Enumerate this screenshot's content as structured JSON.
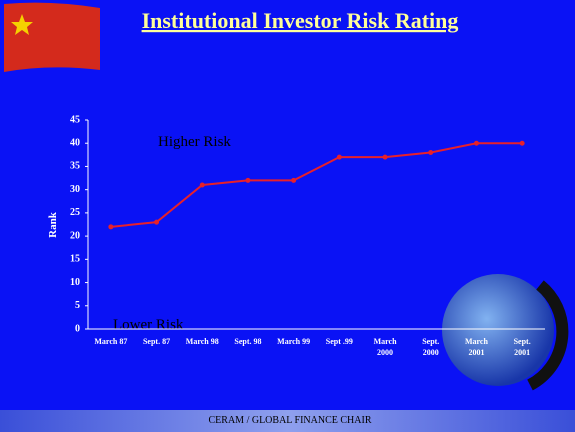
{
  "chart_data": {
    "type": "line",
    "title": "Institutional Investor Risk Rating",
    "ylabel": "Rank",
    "annotations": [
      "Higher Risk",
      "Lower Risk"
    ],
    "footer": "CERAM / GLOBAL FINANCE CHAIR",
    "categories": [
      "March 87",
      "Sept. 87",
      "March 98",
      "Sept. 98",
      "March 99",
      "Sept .99",
      "March\n2000",
      "Sept.\n2000",
      "March\n2001",
      "Sept.\n2001"
    ],
    "series": [
      {
        "name": "Rank",
        "color": "#e8202a",
        "values": [
          22,
          23,
          31,
          32,
          32,
          37,
          37,
          38,
          40,
          40
        ]
      }
    ],
    "ylim": [
      0,
      45
    ],
    "yticks": [
      0,
      5,
      10,
      15,
      20,
      25,
      30,
      35,
      40,
      45
    ],
    "grid": false
  }
}
